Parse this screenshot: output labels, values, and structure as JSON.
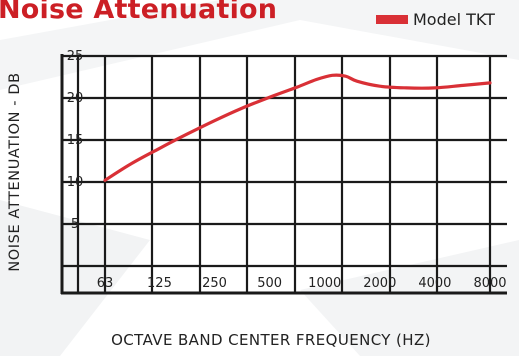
{
  "colors": {
    "title": "#cc1f25",
    "series": "#d93036",
    "grid": "#1a1a1a",
    "text": "#222222"
  },
  "chart_data": {
    "type": "line",
    "title": "Noise Attenuation",
    "xlabel": "OCTAVE BAND CENTER FREQUENCY (HZ)",
    "ylabel": "NOISE ATTENUATION - DB",
    "x_scale": "log2",
    "xlim": [
      63,
      8000
    ],
    "ylim": [
      0,
      25
    ],
    "grid": true,
    "legend_position": "top-right",
    "x_ticks": [
      "63",
      "125",
      "250",
      "500",
      "1000",
      "2000",
      "4000",
      "8000"
    ],
    "y_ticks": [
      "5",
      "10",
      "15",
      "20",
      "25"
    ],
    "series": [
      {
        "name": "Model TKT",
        "x": [
          63,
          88,
          125,
          177,
          250,
          354,
          500,
          707,
          900,
          1100,
          1300,
          1500,
          2000,
          2800,
          4000,
          5700,
          8000
        ],
        "y": [
          10.2,
          12.2,
          14.0,
          15.7,
          17.3,
          18.8,
          20.1,
          21.3,
          22.2,
          22.7,
          22.6,
          22.0,
          21.4,
          21.2,
          21.2,
          21.5,
          21.8
        ]
      }
    ]
  }
}
